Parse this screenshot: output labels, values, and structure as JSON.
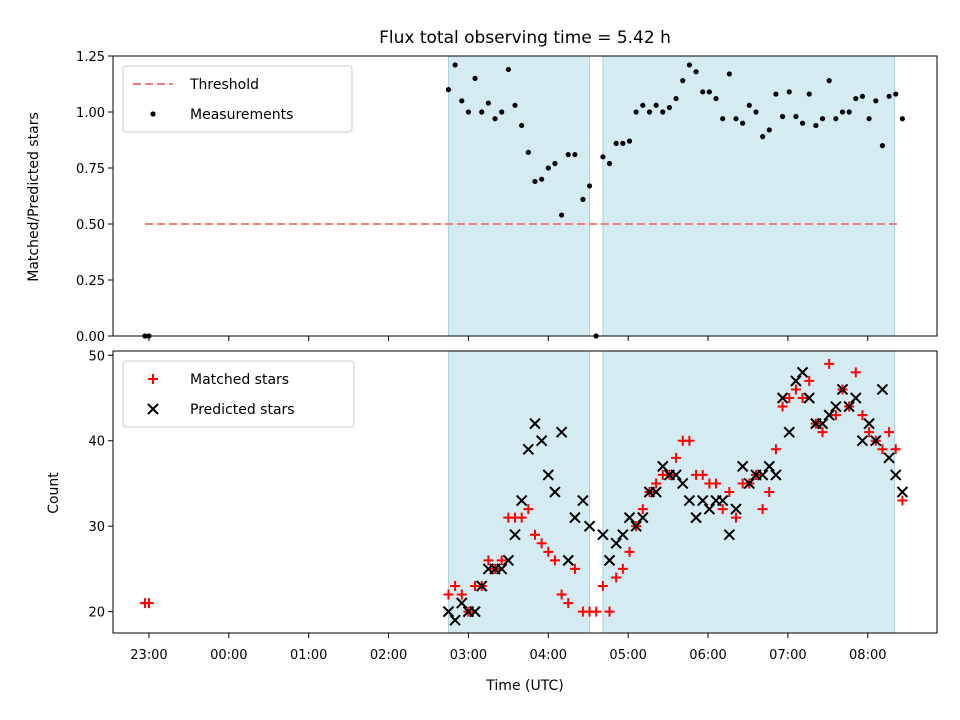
{
  "figure": {
    "title": "Flux total observing time = 5.42 h",
    "xlabel": "Time (UTC)",
    "xticks": [
      "23:00",
      "00:00",
      "01:00",
      "02:00",
      "03:00",
      "04:00",
      "05:00",
      "06:00",
      "07:00",
      "08:00"
    ]
  },
  "colors": {
    "shade": "#d4ebf1",
    "threshold": "#f08080",
    "matched": "#ff0000",
    "predicted": "#000000"
  },
  "chart_data": [
    {
      "type": "scatter",
      "panel": "top",
      "ylabel": "Matched/Predicted stars",
      "ylim": [
        0,
        1.25
      ],
      "yticks": [
        "0.00",
        "0.25",
        "0.50",
        "0.75",
        "1.00",
        "1.25"
      ],
      "xrange": [
        "22:33",
        "08:52"
      ],
      "shaded_intervals": [
        [
          "02:45",
          "04:31"
        ],
        [
          "04:41",
          "08:20"
        ]
      ],
      "legend": {
        "placement": "top-left",
        "entries": [
          "Threshold",
          "Measurements"
        ]
      },
      "threshold": {
        "name": "Threshold",
        "value": 0.5,
        "x_start": "22:57",
        "x_end": "08:22"
      },
      "series": [
        {
          "name": "Measurements",
          "points": [
            [
              "22:57",
              0.0
            ],
            [
              "23:00",
              0.0
            ],
            [
              "02:45",
              1.1
            ],
            [
              "02:50",
              1.21
            ],
            [
              "02:55",
              1.05
            ],
            [
              "03:00",
              1.0
            ],
            [
              "03:05",
              1.15
            ],
            [
              "03:10",
              1.0
            ],
            [
              "03:15",
              1.04
            ],
            [
              "03:20",
              0.97
            ],
            [
              "03:25",
              1.0
            ],
            [
              "03:30",
              1.19
            ],
            [
              "03:35",
              1.03
            ],
            [
              "03:40",
              0.94
            ],
            [
              "03:45",
              0.82
            ],
            [
              "03:50",
              0.69
            ],
            [
              "03:55",
              0.7
            ],
            [
              "04:00",
              0.75
            ],
            [
              "04:05",
              0.77
            ],
            [
              "04:10",
              0.54
            ],
            [
              "04:15",
              0.81
            ],
            [
              "04:20",
              0.81
            ],
            [
              "04:26",
              0.61
            ],
            [
              "04:31",
              0.67
            ],
            [
              "04:36",
              0.0
            ],
            [
              "04:41",
              0.8
            ],
            [
              "04:46",
              0.77
            ],
            [
              "04:51",
              0.86
            ],
            [
              "04:56",
              0.86
            ],
            [
              "05:01",
              0.87
            ],
            [
              "05:06",
              1.0
            ],
            [
              "05:11",
              1.03
            ],
            [
              "05:16",
              1.0
            ],
            [
              "05:21",
              1.03
            ],
            [
              "05:26",
              1.0
            ],
            [
              "05:31",
              1.02
            ],
            [
              "05:36",
              1.06
            ],
            [
              "05:41",
              1.14
            ],
            [
              "05:46",
              1.21
            ],
            [
              "05:51",
              1.18
            ],
            [
              "05:56",
              1.09
            ],
            [
              "06:01",
              1.09
            ],
            [
              "06:06",
              1.06
            ],
            [
              "06:11",
              0.97
            ],
            [
              "06:16",
              1.17
            ],
            [
              "06:21",
              0.97
            ],
            [
              "06:26",
              0.95
            ],
            [
              "06:31",
              1.03
            ],
            [
              "06:36",
              1.0
            ],
            [
              "06:41",
              0.89
            ],
            [
              "06:46",
              0.92
            ],
            [
              "06:51",
              1.08
            ],
            [
              "06:56",
              0.98
            ],
            [
              "07:01",
              1.09
            ],
            [
              "07:06",
              0.98
            ],
            [
              "07:11",
              0.95
            ],
            [
              "07:16",
              1.08
            ],
            [
              "07:21",
              0.94
            ],
            [
              "07:26",
              0.97
            ],
            [
              "07:31",
              1.14
            ],
            [
              "07:36",
              0.97
            ],
            [
              "07:41",
              1.0
            ],
            [
              "07:46",
              1.0
            ],
            [
              "07:51",
              1.06
            ],
            [
              "07:56",
              1.07
            ],
            [
              "08:01",
              0.97
            ],
            [
              "08:06",
              1.05
            ],
            [
              "08:11",
              0.85
            ],
            [
              "08:16",
              1.07
            ],
            [
              "08:21",
              1.08
            ],
            [
              "08:26",
              0.97
            ]
          ]
        }
      ]
    },
    {
      "type": "scatter",
      "panel": "bottom",
      "ylabel": "Count",
      "ylim": [
        17.5,
        50.5
      ],
      "yticks": [
        "20",
        "30",
        "40",
        "50"
      ],
      "xrange": [
        "22:33",
        "08:52"
      ],
      "shaded_intervals": [
        [
          "02:45",
          "04:31"
        ],
        [
          "04:41",
          "08:20"
        ]
      ],
      "legend": {
        "placement": "top-left",
        "entries": [
          "Matched stars",
          "Predicted stars"
        ]
      },
      "series": [
        {
          "name": "Matched stars",
          "marker": "plus",
          "points": [
            [
              "22:57",
              21
            ],
            [
              "23:00",
              21
            ],
            [
              "02:45",
              22
            ],
            [
              "02:50",
              23
            ],
            [
              "02:55",
              22
            ],
            [
              "03:00",
              20
            ],
            [
              "03:05",
              23
            ],
            [
              "03:10",
              23
            ],
            [
              "03:15",
              26
            ],
            [
              "03:20",
              25
            ],
            [
              "03:25",
              26
            ],
            [
              "03:30",
              31
            ],
            [
              "03:35",
              31
            ],
            [
              "03:40",
              31
            ],
            [
              "03:45",
              32
            ],
            [
              "03:50",
              29
            ],
            [
              "03:55",
              28
            ],
            [
              "04:00",
              27
            ],
            [
              "04:05",
              26
            ],
            [
              "04:10",
              22
            ],
            [
              "04:15",
              21
            ],
            [
              "04:20",
              25
            ],
            [
              "04:26",
              20
            ],
            [
              "04:31",
              20
            ],
            [
              "04:36",
              20
            ],
            [
              "04:41",
              23
            ],
            [
              "04:46",
              20
            ],
            [
              "04:51",
              24
            ],
            [
              "04:56",
              25
            ],
            [
              "05:01",
              27
            ],
            [
              "05:06",
              30
            ],
            [
              "05:11",
              32
            ],
            [
              "05:16",
              34
            ],
            [
              "05:21",
              35
            ],
            [
              "05:26",
              36
            ],
            [
              "05:31",
              36
            ],
            [
              "05:36",
              38
            ],
            [
              "05:41",
              40
            ],
            [
              "05:46",
              40
            ],
            [
              "05:51",
              36
            ],
            [
              "05:56",
              36
            ],
            [
              "06:01",
              35
            ],
            [
              "06:06",
              35
            ],
            [
              "06:11",
              32
            ],
            [
              "06:16",
              34
            ],
            [
              "06:21",
              31
            ],
            [
              "06:26",
              35
            ],
            [
              "06:31",
              35
            ],
            [
              "06:36",
              36
            ],
            [
              "06:41",
              32
            ],
            [
              "06:46",
              34
            ],
            [
              "06:51",
              39
            ],
            [
              "06:56",
              44
            ],
            [
              "07:01",
              45
            ],
            [
              "07:06",
              46
            ],
            [
              "07:11",
              45
            ],
            [
              "07:16",
              47
            ],
            [
              "07:21",
              42
            ],
            [
              "07:26",
              41
            ],
            [
              "07:31",
              49
            ],
            [
              "07:36",
              43
            ],
            [
              "07:41",
              46
            ],
            [
              "07:46",
              44
            ],
            [
              "07:51",
              48
            ],
            [
              "07:56",
              43
            ],
            [
              "08:01",
              41
            ],
            [
              "08:06",
              40
            ],
            [
              "08:11",
              39
            ],
            [
              "08:16",
              41
            ],
            [
              "08:21",
              39
            ],
            [
              "08:26",
              33
            ]
          ]
        },
        {
          "name": "Predicted stars",
          "marker": "x",
          "points": [
            [
              "02:45",
              20
            ],
            [
              "02:50",
              19
            ],
            [
              "02:55",
              21
            ],
            [
              "03:00",
              20
            ],
            [
              "03:05",
              20
            ],
            [
              "03:10",
              23
            ],
            [
              "03:15",
              25
            ],
            [
              "03:20",
              25
            ],
            [
              "03:25",
              25
            ],
            [
              "03:30",
              26
            ],
            [
              "03:35",
              29
            ],
            [
              "03:40",
              33
            ],
            [
              "03:45",
              39
            ],
            [
              "03:50",
              42
            ],
            [
              "03:55",
              40
            ],
            [
              "04:00",
              36
            ],
            [
              "04:05",
              34
            ],
            [
              "04:10",
              41
            ],
            [
              "04:15",
              26
            ],
            [
              "04:20",
              31
            ],
            [
              "04:26",
              33
            ],
            [
              "04:31",
              30
            ],
            [
              "04:41",
              29
            ],
            [
              "04:46",
              26
            ],
            [
              "04:51",
              28
            ],
            [
              "04:56",
              29
            ],
            [
              "05:01",
              31
            ],
            [
              "05:06",
              30
            ],
            [
              "05:11",
              31
            ],
            [
              "05:16",
              34
            ],
            [
              "05:21",
              34
            ],
            [
              "05:26",
              37
            ],
            [
              "05:31",
              36
            ],
            [
              "05:36",
              36
            ],
            [
              "05:41",
              35
            ],
            [
              "05:46",
              33
            ],
            [
              "05:51",
              31
            ],
            [
              "05:56",
              33
            ],
            [
              "06:01",
              32
            ],
            [
              "06:06",
              33
            ],
            [
              "06:11",
              33
            ],
            [
              "06:16",
              29
            ],
            [
              "06:21",
              32
            ],
            [
              "06:26",
              37
            ],
            [
              "06:31",
              35
            ],
            [
              "06:36",
              36
            ],
            [
              "06:41",
              36
            ],
            [
              "06:46",
              37
            ],
            [
              "06:51",
              36
            ],
            [
              "06:56",
              45
            ],
            [
              "07:01",
              41
            ],
            [
              "07:06",
              47
            ],
            [
              "07:11",
              48
            ],
            [
              "07:16",
              45
            ],
            [
              "07:21",
              42
            ],
            [
              "07:26",
              42
            ],
            [
              "07:31",
              43
            ],
            [
              "07:36",
              44
            ],
            [
              "07:41",
              46
            ],
            [
              "07:46",
              44
            ],
            [
              "07:51",
              45
            ],
            [
              "07:56",
              40
            ],
            [
              "08:01",
              42
            ],
            [
              "08:06",
              40
            ],
            [
              "08:11",
              46
            ],
            [
              "08:16",
              38
            ],
            [
              "08:21",
              36
            ],
            [
              "08:26",
              34
            ]
          ]
        }
      ]
    }
  ]
}
